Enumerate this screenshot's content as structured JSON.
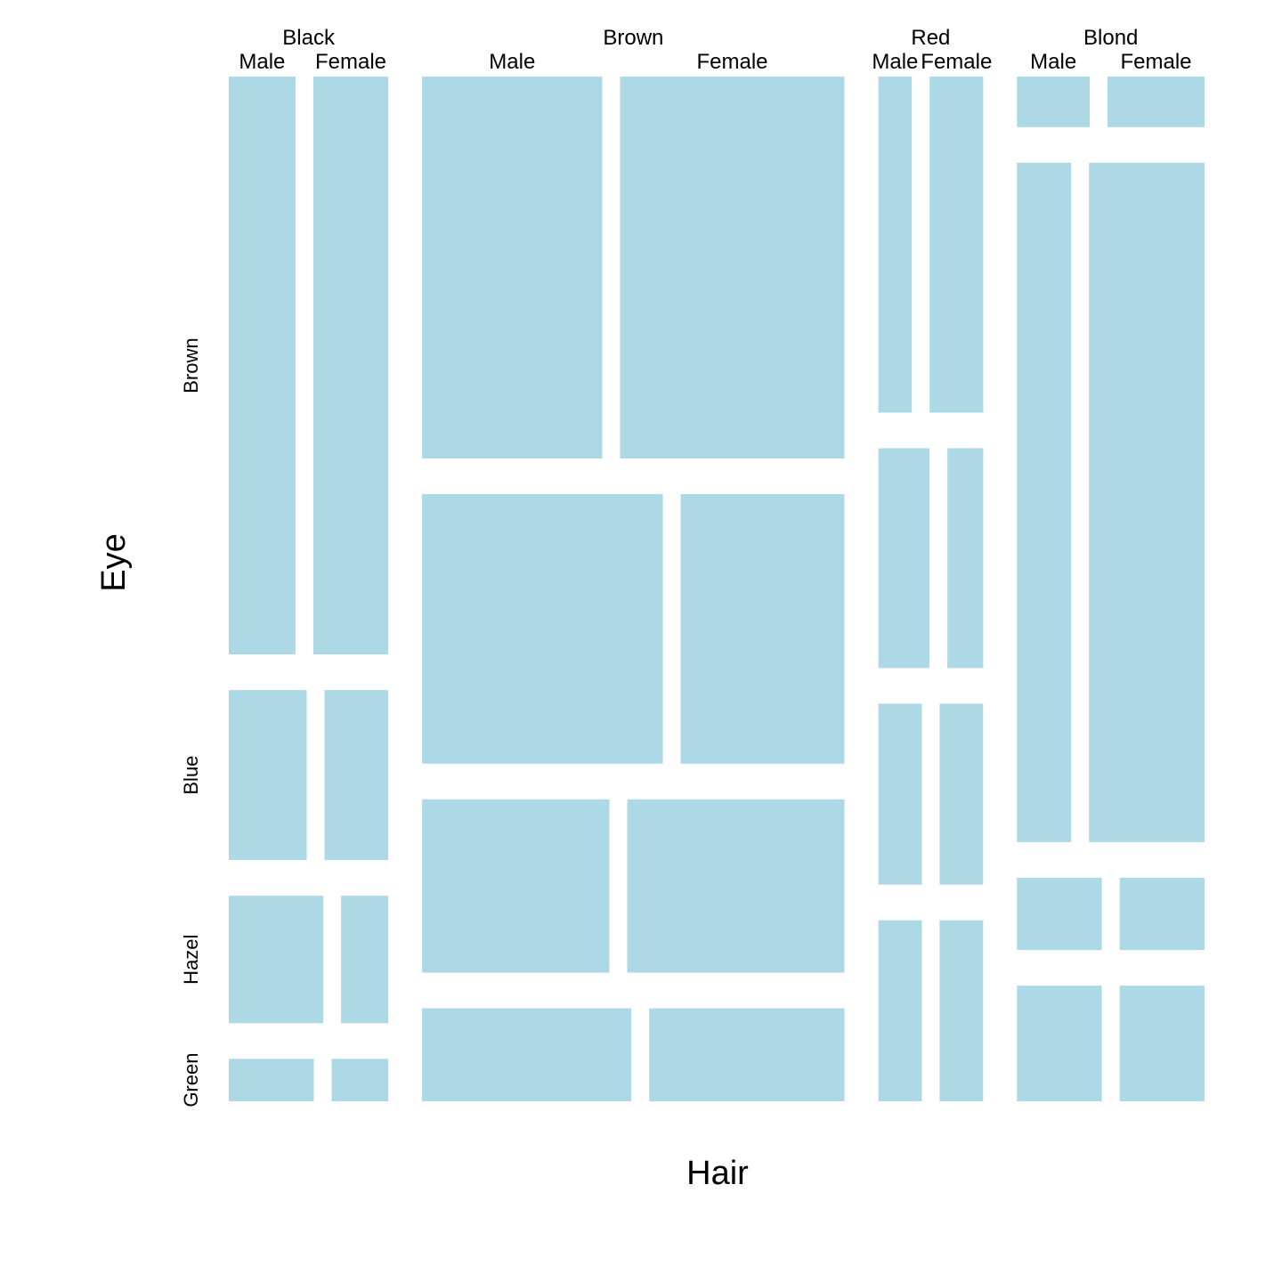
{
  "chart_data": {
    "type": "mosaic",
    "xlabel": "Hair",
    "ylabel": "Eye",
    "fill_color": "#add8e6",
    "hair_levels": [
      "Black",
      "Brown",
      "Red",
      "Blond"
    ],
    "sex_levels": [
      "Male",
      "Female"
    ],
    "eye_levels": [
      "Brown",
      "Blue",
      "Hazel",
      "Green"
    ],
    "counts": {
      "Black": {
        "Brown": [
          32,
          36
        ],
        "Blue": [
          11,
          9
        ],
        "Hazel": [
          10,
          5
        ],
        "Green": [
          3,
          2
        ]
      },
      "Brown": {
        "Brown": [
          53,
          66
        ],
        "Blue": [
          50,
          34
        ],
        "Hazel": [
          25,
          29
        ],
        "Green": [
          15,
          14
        ]
      },
      "Red": {
        "Brown": [
          10,
          16
        ],
        "Blue": [
          10,
          7
        ],
        "Hazel": [
          7,
          7
        ],
        "Green": [
          7,
          7
        ]
      },
      "Blond": {
        "Brown": [
          3,
          4
        ],
        "Blue": [
          30,
          64
        ],
        "Hazel": [
          5,
          5
        ],
        "Green": [
          8,
          8
        ]
      }
    }
  }
}
